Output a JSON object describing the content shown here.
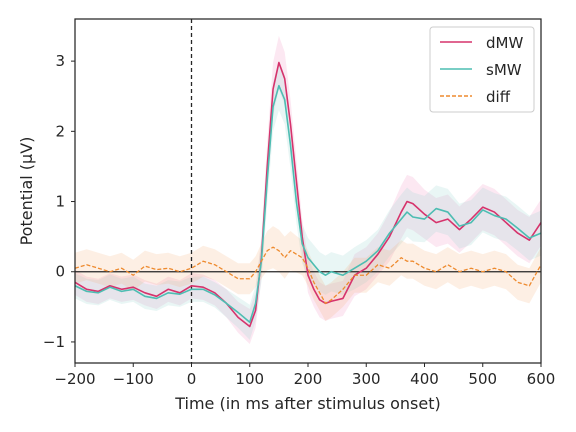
{
  "chart_data": {
    "type": "line",
    "xlabel": "Time (in ms after stimulus onset)",
    "ylabel": "Potential (μV)",
    "xlim": [
      -200,
      600
    ],
    "ylim": [
      -1.3,
      3.6
    ],
    "xticks": [
      -200,
      -100,
      0,
      100,
      200,
      300,
      400,
      500,
      600
    ],
    "xtick_labels": [
      "−200",
      "−100",
      "0",
      "100",
      "200",
      "300",
      "400",
      "500",
      "600"
    ],
    "yticks": [
      -1,
      0,
      1,
      2,
      3
    ],
    "ytick_labels": [
      "−1",
      "0",
      "1",
      "2",
      "3"
    ],
    "grid": false,
    "legend": "top-right",
    "reference_lines": {
      "horizontal_y": 0,
      "vertical_dashed_x": 0
    },
    "x": [
      -200,
      -180,
      -160,
      -140,
      -120,
      -100,
      -80,
      -60,
      -40,
      -20,
      0,
      20,
      40,
      60,
      80,
      100,
      110,
      120,
      130,
      140,
      150,
      160,
      170,
      180,
      190,
      200,
      210,
      220,
      230,
      240,
      260,
      280,
      300,
      320,
      340,
      360,
      370,
      380,
      400,
      420,
      440,
      460,
      480,
      500,
      520,
      540,
      560,
      580,
      600
    ],
    "series": [
      {
        "name": "dMW",
        "color": "#d6336c",
        "style": "solid",
        "values": [
          -0.15,
          -0.25,
          -0.28,
          -0.2,
          -0.25,
          -0.22,
          -0.3,
          -0.35,
          -0.25,
          -0.3,
          -0.2,
          -0.22,
          -0.3,
          -0.45,
          -0.65,
          -0.78,
          -0.55,
          0.2,
          1.5,
          2.6,
          2.98,
          2.75,
          2.1,
          1.3,
          0.5,
          -0.05,
          -0.25,
          -0.4,
          -0.45,
          -0.42,
          -0.38,
          -0.05,
          0.05,
          0.25,
          0.5,
          0.85,
          1.0,
          0.97,
          0.82,
          0.7,
          0.75,
          0.6,
          0.75,
          0.92,
          0.85,
          0.7,
          0.55,
          0.45,
          0.7
        ]
      },
      {
        "name": "sMW",
        "color": "#4dbdb2",
        "style": "solid",
        "values": [
          -0.2,
          -0.28,
          -0.3,
          -0.22,
          -0.28,
          -0.25,
          -0.35,
          -0.38,
          -0.3,
          -0.32,
          -0.25,
          -0.25,
          -0.33,
          -0.45,
          -0.58,
          -0.72,
          -0.45,
          0.15,
          1.3,
          2.35,
          2.65,
          2.45,
          1.8,
          1.0,
          0.4,
          0.2,
          0.1,
          0.0,
          -0.05,
          0.0,
          -0.05,
          0.05,
          0.15,
          0.3,
          0.55,
          0.75,
          0.85,
          0.78,
          0.75,
          0.9,
          0.85,
          0.65,
          0.7,
          0.88,
          0.8,
          0.75,
          0.62,
          0.48,
          0.55
        ]
      },
      {
        "name": "diff",
        "color": "#ee8a2e",
        "style": "dashed",
        "values": [
          0.05,
          0.1,
          0.05,
          0.0,
          0.05,
          -0.05,
          0.08,
          0.03,
          0.05,
          0.0,
          0.05,
          0.15,
          0.1,
          0.0,
          -0.1,
          -0.1,
          0.0,
          0.15,
          0.3,
          0.35,
          0.3,
          0.2,
          0.3,
          0.25,
          0.2,
          0.05,
          -0.15,
          -0.3,
          -0.45,
          -0.4,
          -0.25,
          -0.05,
          -0.05,
          0.1,
          0.05,
          0.2,
          0.15,
          0.15,
          0.05,
          0.0,
          0.1,
          0.0,
          0.05,
          0.0,
          0.05,
          0.0,
          -0.15,
          -0.2,
          0.1
        ]
      }
    ],
    "bands": [
      {
        "series": "dMW",
        "fill": "#f080b5",
        "opacity": 0.18
      },
      {
        "series": "sMW",
        "fill": "#9ad8d2",
        "opacity": 0.22
      },
      {
        "series": "diff",
        "fill": "#f6b07a",
        "opacity": 0.2
      }
    ],
    "band_halfwidths": {
      "dMW": [
        0.18,
        0.18,
        0.18,
        0.18,
        0.18,
        0.18,
        0.18,
        0.18,
        0.18,
        0.18,
        0.18,
        0.18,
        0.18,
        0.2,
        0.22,
        0.25,
        0.25,
        0.3,
        0.35,
        0.38,
        0.38,
        0.38,
        0.35,
        0.3,
        0.25,
        0.25,
        0.25,
        0.25,
        0.25,
        0.25,
        0.25,
        0.3,
        0.3,
        0.3,
        0.35,
        0.38,
        0.38,
        0.38,
        0.35,
        0.35,
        0.35,
        0.33,
        0.33,
        0.33,
        0.33,
        0.33,
        0.33,
        0.33,
        0.33
      ],
      "sMW": [
        0.18,
        0.18,
        0.18,
        0.18,
        0.18,
        0.18,
        0.18,
        0.18,
        0.18,
        0.18,
        0.18,
        0.18,
        0.18,
        0.2,
        0.22,
        0.25,
        0.25,
        0.3,
        0.33,
        0.35,
        0.35,
        0.35,
        0.33,
        0.3,
        0.28,
        0.28,
        0.28,
        0.28,
        0.28,
        0.28,
        0.28,
        0.3,
        0.3,
        0.3,
        0.33,
        0.35,
        0.35,
        0.35,
        0.33,
        0.33,
        0.33,
        0.32,
        0.32,
        0.32,
        0.32,
        0.32,
        0.32,
        0.32,
        0.32
      ],
      "diff": [
        0.22,
        0.22,
        0.22,
        0.22,
        0.22,
        0.22,
        0.22,
        0.22,
        0.22,
        0.22,
        0.22,
        0.22,
        0.22,
        0.22,
        0.22,
        0.22,
        0.22,
        0.25,
        0.28,
        0.3,
        0.3,
        0.3,
        0.28,
        0.26,
        0.25,
        0.25,
        0.25,
        0.25,
        0.25,
        0.25,
        0.25,
        0.25,
        0.25,
        0.25,
        0.25,
        0.25,
        0.25,
        0.25,
        0.25,
        0.25,
        0.25,
        0.25,
        0.25,
        0.25,
        0.25,
        0.25,
        0.25,
        0.25,
        0.25
      ]
    }
  }
}
